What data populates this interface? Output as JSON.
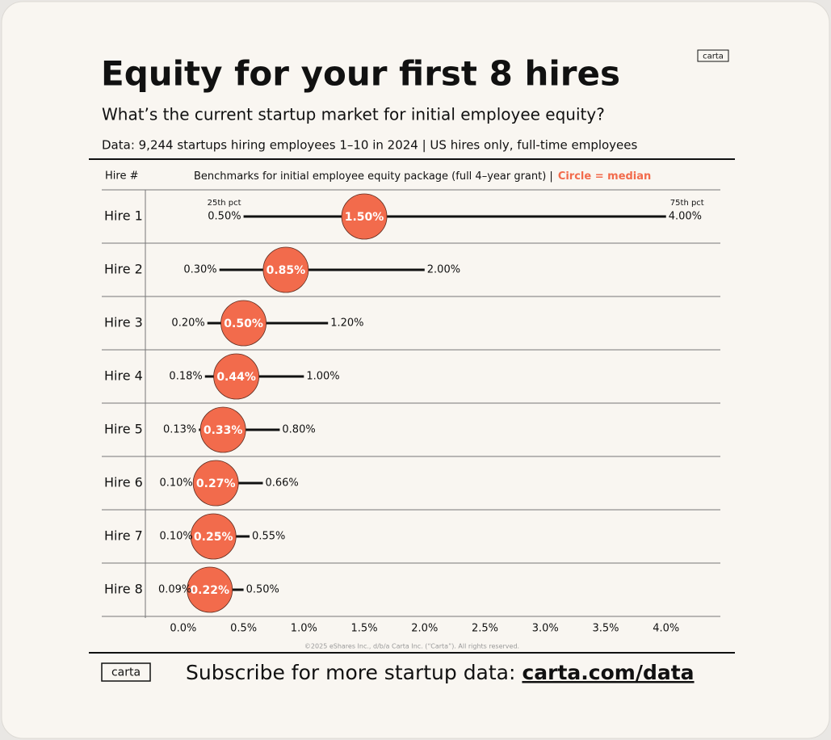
{
  "chart_data": {
    "type": "range",
    "title": "Equity for your first 8 hires",
    "subtitle": "What’s the current startup market for initial employee equity?",
    "data_note": "Data: 9,244 startups hiring employees 1–10 in 2024 | US hires only, full-time employees",
    "category_header": "Hire #",
    "column_header": "Benchmarks for initial employee equity package (full 4–year grant)  |",
    "legend_text": "Circle = median",
    "logo": "carta",
    "categories": [
      "Hire 1",
      "Hire 2",
      "Hire 3",
      "Hire 4",
      "Hire 5",
      "Hire 6",
      "Hire 7",
      "Hire 8"
    ],
    "series": [
      {
        "name": "25th pct",
        "color": "#111111",
        "values": [
          0.5,
          0.3,
          0.2,
          0.18,
          0.13,
          0.1,
          0.1,
          0.09
        ],
        "value_labels": [
          "0.50%",
          "0.30%",
          "0.20%",
          "0.18%",
          "0.13%",
          "0.10%",
          "0.10%",
          "0.09%"
        ]
      },
      {
        "color": "#f26b4c",
        "values": [
          1.5,
          0.85,
          0.5,
          0.44,
          0.33,
          0.27,
          0.25,
          0.22
        ],
        "value_labels": [
          "1.50%",
          "0.85%",
          "0.50%",
          "0.44%",
          "0.33%",
          "0.27%",
          "0.25%",
          "0.22%"
        ]
      },
      {
        "name": "75th pct",
        "color": "#111111",
        "values": [
          4.0,
          2.0,
          1.2,
          1.0,
          0.8,
          0.66,
          0.55,
          0.5
        ],
        "value_labels": [
          "4.00%",
          "2.00%",
          "1.20%",
          "1.00%",
          "0.80%",
          "0.66%",
          "0.55%",
          "0.50%"
        ]
      }
    ],
    "xlim": [
      -0.3,
      4.45
    ],
    "xticks": [
      {
        "value": 0,
        "label": "0.0%"
      },
      {
        "value": 0.5,
        "label": "0.5%"
      },
      {
        "value": 1,
        "label": "1.0%"
      },
      {
        "value": 1.5,
        "label": "1.5%"
      },
      {
        "value": 2,
        "label": "2.0%"
      },
      {
        "value": 2.5,
        "label": "2.5%"
      },
      {
        "value": 3,
        "label": "3.0%"
      },
      {
        "value": 3.5,
        "label": "3.5%"
      },
      {
        "value": 4,
        "label": "4.0%"
      }
    ],
    "copyright": "©2025 eShares Inc., d/b/a Carta Inc. (“Carta”). All rights reserved.",
    "footer_text": "Subscribe for more startup data:",
    "footer_link": "carta.com/data"
  }
}
